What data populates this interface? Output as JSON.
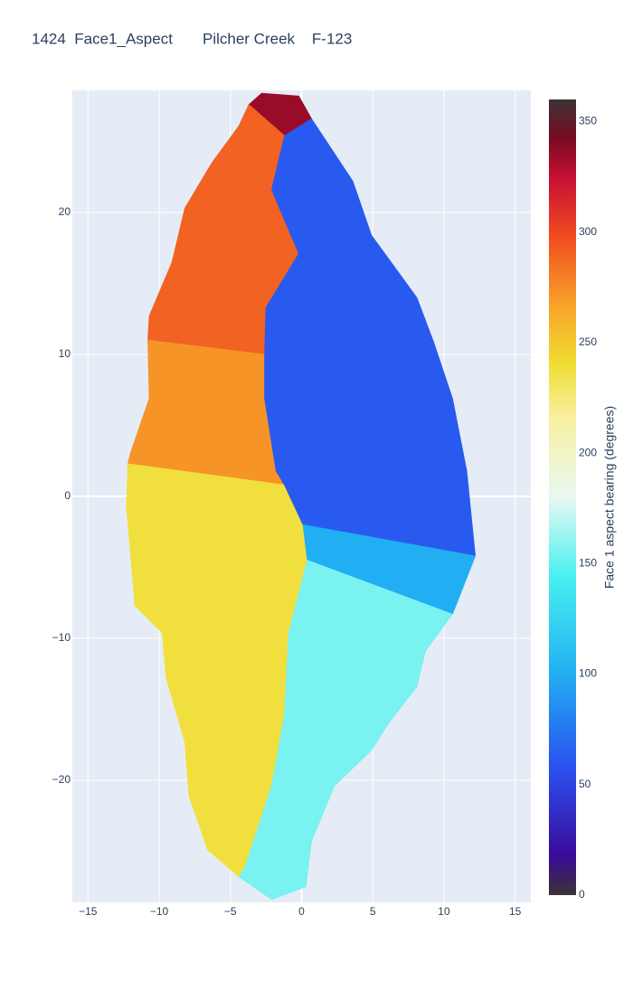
{
  "chart_data": {
    "type": "aspect-map",
    "title": "1424  Face1_Aspect       Pilcher Creek    F-123",
    "colorbar_title": "Face 1 aspect bearing (degrees)",
    "xlim": [
      -16.1,
      16.1
    ],
    "ylim": [
      -28.6,
      28.6
    ],
    "xticks": [
      {
        "value": -15,
        "label": "−15"
      },
      {
        "value": -10,
        "label": "−10"
      },
      {
        "value": -5,
        "label": "−5"
      },
      0,
      5,
      10,
      15
    ],
    "yticks": [
      {
        "value": -20,
        "label": "−20"
      },
      {
        "value": -10,
        "label": "−10"
      },
      0,
      10,
      20
    ],
    "grid": true,
    "clim": [
      0,
      360
    ],
    "cticks": [
      0,
      50,
      100,
      150,
      200,
      250,
      300,
      350
    ],
    "colorscale": [
      [
        0,
        "#3b3434"
      ],
      [
        0.05,
        "#3a0a9a"
      ],
      [
        0.16,
        "#2a50f0"
      ],
      [
        0.28,
        "#22b0f2"
      ],
      [
        0.4,
        "#48f0f0"
      ],
      [
        0.5,
        "#e8f8f2"
      ],
      [
        0.6,
        "#f8f0a0"
      ],
      [
        0.67,
        "#f0dc30"
      ],
      [
        0.74,
        "#f8a428"
      ],
      [
        0.83,
        "#f04a20"
      ],
      [
        0.9,
        "#c81034"
      ],
      [
        0.95,
        "#7a0a22"
      ],
      [
        1,
        "#3b3434"
      ]
    ],
    "regions": [
      {
        "value": 335,
        "x": [
          -3.7,
          -2.8,
          -0.2,
          0.7,
          -1.2
        ],
        "y": [
          27.6,
          28.4,
          28.2,
          26.6,
          25.4
        ]
      },
      {
        "value": 290,
        "x": [
          -3.7,
          -1.2,
          -2.1,
          -0.2,
          -2.5,
          -2.6,
          -10.8,
          -10.7,
          -9.1,
          -8.2,
          -6.3,
          -4.4
        ],
        "y": [
          27.6,
          25.4,
          21.6,
          17.1,
          13.3,
          10.0,
          11.0,
          12.7,
          16.5,
          20.3,
          23.5,
          26.1
        ]
      },
      {
        "value": 272,
        "x": [
          -10.8,
          -2.6,
          -2.6,
          -1.8,
          -1.2,
          -12.2,
          -12.0,
          -10.7
        ],
        "y": [
          11.0,
          10.0,
          6.9,
          1.8,
          0.8,
          2.3,
          3.1,
          6.9
        ]
      },
      {
        "value": 238,
        "x": [
          -12.2,
          -1.2,
          0.1,
          0.4,
          -0.9,
          -1.2,
          -2.1,
          -4.0,
          -4.4,
          -6.6,
          -7.9,
          -8.2,
          -9.5,
          -9.8,
          -11.7,
          -12.3
        ],
        "y": [
          2.3,
          0.8,
          -2.0,
          -4.5,
          -9.6,
          -15.4,
          -20.4,
          -26.2,
          -26.8,
          -24.9,
          -21.1,
          -17.3,
          -12.8,
          -9.6,
          -7.7,
          -0.7
        ]
      },
      {
        "value": 62,
        "x": [
          -1.2,
          0.7,
          3.6,
          4.9,
          8.1,
          9.3,
          10.6,
          11.6,
          12.2,
          0.1,
          -1.2,
          -1.8,
          -2.6,
          -2.6,
          -2.5,
          -0.2,
          -2.1
        ],
        "y": [
          25.4,
          26.6,
          22.2,
          18.4,
          14.0,
          10.8,
          6.9,
          1.8,
          -4.2,
          -2.0,
          0.8,
          1.8,
          6.9,
          10.0,
          13.3,
          17.1,
          21.6
        ]
      },
      {
        "value": 100,
        "x": [
          0.1,
          12.2,
          10.6,
          0.4
        ],
        "y": [
          -2.0,
          -4.2,
          -8.3,
          -4.5
        ]
      },
      {
        "value": 155,
        "x": [
          0.4,
          10.6,
          8.7,
          8.1,
          6.1,
          4.9,
          2.3,
          0.7,
          0.3,
          -2.1,
          -4.4,
          -4.0,
          -2.1,
          -1.2,
          -0.9
        ],
        "y": [
          -4.5,
          -8.3,
          -10.9,
          -13.4,
          -16.0,
          -17.9,
          -20.4,
          -24.3,
          -27.5,
          -28.4,
          -26.8,
          -26.2,
          -20.4,
          -15.4,
          -9.6
        ]
      }
    ]
  }
}
